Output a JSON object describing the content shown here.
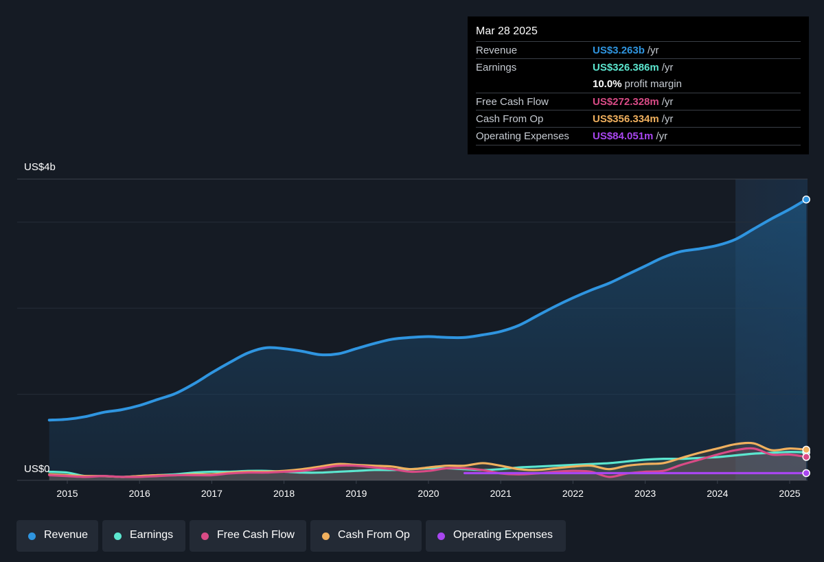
{
  "colors": {
    "revenue": "#2f95e0",
    "earnings": "#5ce6cf",
    "fcf": "#d94b86",
    "cfo": "#f0b05e",
    "opex": "#a846f0",
    "background": "#151b24"
  },
  "tooltip": {
    "date": "Mar 28 2025",
    "rows": [
      {
        "label": "Revenue",
        "value": "US$3.263b",
        "unit": "/yr"
      },
      {
        "label": "Earnings",
        "value": "US$326.386m",
        "unit": "/yr"
      },
      {
        "label": "",
        "value": "10.0%",
        "unit": "profit margin"
      },
      {
        "label": "Free Cash Flow",
        "value": "US$272.328m",
        "unit": "/yr"
      },
      {
        "label": "Cash From Op",
        "value": "US$356.334m",
        "unit": "/yr"
      },
      {
        "label": "Operating Expenses",
        "value": "US$84.051m",
        "unit": "/yr"
      }
    ]
  },
  "legend": [
    "Revenue",
    "Earnings",
    "Free Cash Flow",
    "Cash From Op",
    "Operating Expenses"
  ],
  "chart_data": {
    "type": "area",
    "y_unit_label_top": "US$4b",
    "y_unit_label_bottom": "US$0",
    "ylim": [
      0,
      3.5
    ],
    "xlim": [
      2014.7,
      2025.25
    ],
    "x_ticks": [
      "2015",
      "2016",
      "2017",
      "2018",
      "2019",
      "2020",
      "2021",
      "2022",
      "2023",
      "2024",
      "2025"
    ],
    "grid": true,
    "highlight_from": 2024.25,
    "series": [
      {
        "name": "Revenue",
        "key": "revenue",
        "points": [
          [
            2014.75,
            0.7
          ],
          [
            2015.0,
            0.71
          ],
          [
            2015.25,
            0.74
          ],
          [
            2015.5,
            0.79
          ],
          [
            2015.75,
            0.82
          ],
          [
            2016.0,
            0.87
          ],
          [
            2016.25,
            0.94
          ],
          [
            2016.5,
            1.01
          ],
          [
            2016.75,
            1.12
          ],
          [
            2017.0,
            1.25
          ],
          [
            2017.25,
            1.37
          ],
          [
            2017.5,
            1.48
          ],
          [
            2017.75,
            1.54
          ],
          [
            2018.0,
            1.53
          ],
          [
            2018.25,
            1.5
          ],
          [
            2018.5,
            1.46
          ],
          [
            2018.75,
            1.47
          ],
          [
            2019.0,
            1.53
          ],
          [
            2019.25,
            1.59
          ],
          [
            2019.5,
            1.64
          ],
          [
            2019.75,
            1.66
          ],
          [
            2020.0,
            1.67
          ],
          [
            2020.25,
            1.66
          ],
          [
            2020.5,
            1.66
          ],
          [
            2020.75,
            1.69
          ],
          [
            2021.0,
            1.73
          ],
          [
            2021.25,
            1.8
          ],
          [
            2021.5,
            1.91
          ],
          [
            2021.75,
            2.02
          ],
          [
            2022.0,
            2.12
          ],
          [
            2022.25,
            2.21
          ],
          [
            2022.5,
            2.29
          ],
          [
            2022.75,
            2.39
          ],
          [
            2023.0,
            2.49
          ],
          [
            2023.25,
            2.59
          ],
          [
            2023.5,
            2.66
          ],
          [
            2023.75,
            2.69
          ],
          [
            2024.0,
            2.73
          ],
          [
            2024.25,
            2.8
          ],
          [
            2024.5,
            2.92
          ],
          [
            2024.75,
            3.04
          ],
          [
            2025.0,
            3.15
          ],
          [
            2025.23,
            3.263
          ]
        ]
      },
      {
        "name": "Earnings",
        "key": "earnings",
        "points": [
          [
            2014.75,
            0.1
          ],
          [
            2015.0,
            0.09
          ],
          [
            2015.25,
            0.05
          ],
          [
            2015.5,
            0.05
          ],
          [
            2015.75,
            0.04
          ],
          [
            2016.0,
            0.05
          ],
          [
            2016.25,
            0.06
          ],
          [
            2016.5,
            0.07
          ],
          [
            2016.75,
            0.09
          ],
          [
            2017.0,
            0.1
          ],
          [
            2017.25,
            0.1
          ],
          [
            2017.5,
            0.11
          ],
          [
            2017.75,
            0.11
          ],
          [
            2018.0,
            0.1
          ],
          [
            2018.25,
            0.09
          ],
          [
            2018.5,
            0.09
          ],
          [
            2018.75,
            0.1
          ],
          [
            2019.0,
            0.11
          ],
          [
            2019.25,
            0.12
          ],
          [
            2019.5,
            0.12
          ],
          [
            2019.75,
            0.13
          ],
          [
            2020.0,
            0.14
          ],
          [
            2020.25,
            0.14
          ],
          [
            2020.5,
            0.13
          ],
          [
            2020.75,
            0.12
          ],
          [
            2021.0,
            0.13
          ],
          [
            2021.25,
            0.15
          ],
          [
            2021.5,
            0.16
          ],
          [
            2021.75,
            0.17
          ],
          [
            2022.0,
            0.18
          ],
          [
            2022.25,
            0.19
          ],
          [
            2022.5,
            0.2
          ],
          [
            2022.75,
            0.22
          ],
          [
            2023.0,
            0.24
          ],
          [
            2023.25,
            0.25
          ],
          [
            2023.5,
            0.25
          ],
          [
            2023.75,
            0.26
          ],
          [
            2024.0,
            0.27
          ],
          [
            2024.25,
            0.29
          ],
          [
            2024.5,
            0.31
          ],
          [
            2024.75,
            0.32
          ],
          [
            2025.0,
            0.33
          ],
          [
            2025.23,
            0.326
          ]
        ]
      },
      {
        "name": "Free Cash Flow",
        "key": "fcf",
        "points": [
          [
            2014.75,
            0.06
          ],
          [
            2015.0,
            0.05
          ],
          [
            2015.25,
            0.04
          ],
          [
            2015.5,
            0.05
          ],
          [
            2015.75,
            0.04
          ],
          [
            2016.0,
            0.04
          ],
          [
            2016.25,
            0.05
          ],
          [
            2016.5,
            0.06
          ],
          [
            2016.75,
            0.06
          ],
          [
            2017.0,
            0.06
          ],
          [
            2017.25,
            0.08
          ],
          [
            2017.5,
            0.09
          ],
          [
            2017.75,
            0.09
          ],
          [
            2018.0,
            0.1
          ],
          [
            2018.25,
            0.11
          ],
          [
            2018.5,
            0.14
          ],
          [
            2018.75,
            0.17
          ],
          [
            2019.0,
            0.17
          ],
          [
            2019.25,
            0.15
          ],
          [
            2019.5,
            0.13
          ],
          [
            2019.75,
            0.1
          ],
          [
            2020.0,
            0.11
          ],
          [
            2020.25,
            0.14
          ],
          [
            2020.5,
            0.14
          ],
          [
            2020.75,
            0.12
          ],
          [
            2021.0,
            0.08
          ],
          [
            2021.25,
            0.07
          ],
          [
            2021.5,
            0.08
          ],
          [
            2021.75,
            0.1
          ],
          [
            2022.0,
            0.11
          ],
          [
            2022.25,
            0.1
          ],
          [
            2022.5,
            0.04
          ],
          [
            2022.75,
            0.08
          ],
          [
            2023.0,
            0.1
          ],
          [
            2023.25,
            0.11
          ],
          [
            2023.5,
            0.18
          ],
          [
            2023.75,
            0.24
          ],
          [
            2024.0,
            0.3
          ],
          [
            2024.25,
            0.35
          ],
          [
            2024.5,
            0.37
          ],
          [
            2024.75,
            0.3
          ],
          [
            2025.0,
            0.3
          ],
          [
            2025.23,
            0.272
          ]
        ]
      },
      {
        "name": "Cash From Op",
        "key": "cfo",
        "points": [
          [
            2014.75,
            0.07
          ],
          [
            2015.0,
            0.06
          ],
          [
            2015.25,
            0.05
          ],
          [
            2015.5,
            0.05
          ],
          [
            2015.75,
            0.04
          ],
          [
            2016.0,
            0.05
          ],
          [
            2016.25,
            0.06
          ],
          [
            2016.5,
            0.06
          ],
          [
            2016.75,
            0.07
          ],
          [
            2017.0,
            0.07
          ],
          [
            2017.25,
            0.09
          ],
          [
            2017.5,
            0.1
          ],
          [
            2017.75,
            0.1
          ],
          [
            2018.0,
            0.11
          ],
          [
            2018.25,
            0.13
          ],
          [
            2018.5,
            0.16
          ],
          [
            2018.75,
            0.19
          ],
          [
            2019.0,
            0.18
          ],
          [
            2019.25,
            0.17
          ],
          [
            2019.5,
            0.16
          ],
          [
            2019.75,
            0.13
          ],
          [
            2020.0,
            0.15
          ],
          [
            2020.25,
            0.17
          ],
          [
            2020.5,
            0.17
          ],
          [
            2020.75,
            0.2
          ],
          [
            2021.0,
            0.17
          ],
          [
            2021.25,
            0.13
          ],
          [
            2021.5,
            0.12
          ],
          [
            2021.75,
            0.14
          ],
          [
            2022.0,
            0.16
          ],
          [
            2022.25,
            0.17
          ],
          [
            2022.5,
            0.13
          ],
          [
            2022.75,
            0.17
          ],
          [
            2023.0,
            0.19
          ],
          [
            2023.25,
            0.2
          ],
          [
            2023.5,
            0.26
          ],
          [
            2023.75,
            0.32
          ],
          [
            2024.0,
            0.37
          ],
          [
            2024.25,
            0.42
          ],
          [
            2024.5,
            0.43
          ],
          [
            2024.75,
            0.35
          ],
          [
            2025.0,
            0.37
          ],
          [
            2025.23,
            0.356
          ]
        ]
      },
      {
        "name": "Operating Expenses",
        "key": "opex",
        "points": [
          [
            2020.5,
            0.084
          ],
          [
            2021.0,
            0.084
          ],
          [
            2022.0,
            0.084
          ],
          [
            2023.0,
            0.084
          ],
          [
            2024.0,
            0.084
          ],
          [
            2025.23,
            0.084
          ]
        ]
      }
    ]
  }
}
